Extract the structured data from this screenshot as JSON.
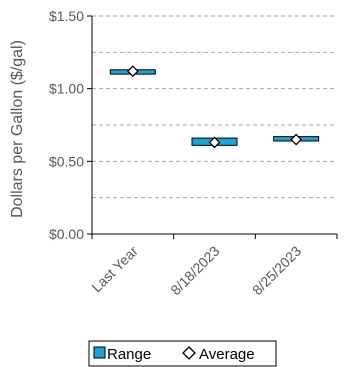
{
  "chart_data": {
    "type": "range",
    "ylabel": "Dollars per Gallon ($/gal)",
    "ylim": [
      0,
      1.5
    ],
    "y_ticks": [
      {
        "value": 0,
        "label": "$0.00"
      },
      {
        "value": 0.5,
        "label": "$0.50"
      },
      {
        "value": 1.0,
        "label": "$1.00"
      },
      {
        "value": 1.5,
        "label": "$1.50"
      }
    ],
    "gridlines": [
      0.25,
      0.5,
      0.75,
      1.0,
      1.25,
      1.5
    ],
    "categories": [
      "Last Year",
      "8/18/2023",
      "8/25/2023"
    ],
    "series": [
      {
        "name": "Range",
        "low": [
          1.1,
          0.61,
          0.64
        ],
        "high": [
          1.13,
          0.66,
          0.67
        ]
      },
      {
        "name": "Average",
        "values": [
          1.12,
          0.63,
          0.65
        ]
      }
    ],
    "legend": {
      "position": "bottom",
      "items": [
        "Range",
        "Average"
      ]
    }
  },
  "colors": {
    "range_fill": "#1aa3d9",
    "axis_text": "#595959",
    "grid": "#a6a6a6"
  }
}
